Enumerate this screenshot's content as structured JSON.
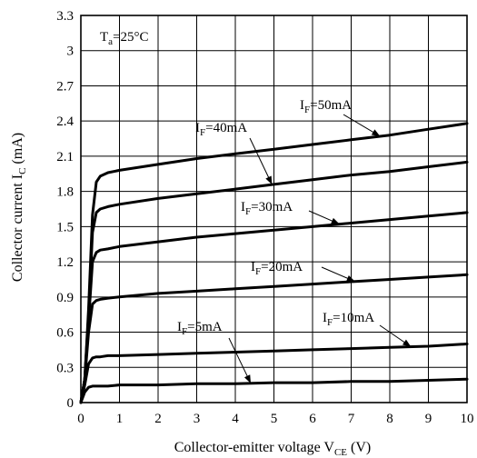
{
  "chart_data": {
    "type": "line",
    "xlabel_main": "Collector-emitter voltage V",
    "xlabel_sub": "CE",
    "xlabel_unit": " (V)",
    "ylabel_main": "Collector current I",
    "ylabel_sub": "C",
    "ylabel_unit": " (mA)",
    "condition_main": "T",
    "condition_sub": "a",
    "condition_rest": "=25°C",
    "xlim": [
      0,
      10
    ],
    "ylim": [
      0,
      3.3
    ],
    "xticks": [
      "0",
      "1",
      "2",
      "3",
      "4",
      "5",
      "6",
      "7",
      "8",
      "9",
      "10"
    ],
    "yticks": [
      "0",
      "0.3",
      "0.6",
      "0.9",
      "1.2",
      "1.5",
      "1.8",
      "2.1",
      "2.4",
      "2.7",
      "3",
      "3.3"
    ],
    "grid": true,
    "series": [
      {
        "name": "IF=50mA",
        "label_main": "I",
        "label_sub": "F",
        "label_rest": "=50mA",
        "x": [
          0,
          0.1,
          0.2,
          0.3,
          0.4,
          0.5,
          0.7,
          1,
          2,
          3,
          4,
          5,
          6,
          7,
          8,
          9,
          10
        ],
        "y": [
          0,
          0.2,
          0.8,
          1.6,
          1.88,
          1.93,
          1.96,
          1.98,
          2.03,
          2.08,
          2.12,
          2.16,
          2.2,
          2.24,
          2.28,
          2.33,
          2.38
        ]
      },
      {
        "name": "IF=40mA",
        "label_main": "I",
        "label_sub": "F",
        "label_rest": "=40mA",
        "x": [
          0,
          0.1,
          0.2,
          0.3,
          0.4,
          0.5,
          0.7,
          1,
          2,
          3,
          4,
          5,
          6,
          7,
          8,
          9,
          10
        ],
        "y": [
          0,
          0.2,
          0.75,
          1.45,
          1.62,
          1.65,
          1.67,
          1.69,
          1.74,
          1.78,
          1.82,
          1.86,
          1.9,
          1.94,
          1.97,
          2.01,
          2.05
        ]
      },
      {
        "name": "IF=30mA",
        "label_main": "I",
        "label_sub": "F",
        "label_rest": "=30mA",
        "x": [
          0,
          0.1,
          0.2,
          0.3,
          0.4,
          0.5,
          0.7,
          1,
          2,
          3,
          4,
          5,
          6,
          7,
          8,
          9,
          10
        ],
        "y": [
          0,
          0.2,
          0.7,
          1.2,
          1.28,
          1.3,
          1.31,
          1.33,
          1.37,
          1.41,
          1.44,
          1.47,
          1.5,
          1.53,
          1.56,
          1.59,
          1.62
        ]
      },
      {
        "name": "IF=20mA",
        "label_main": "I",
        "label_sub": "F",
        "label_rest": "=20mA",
        "x": [
          0,
          0.1,
          0.2,
          0.3,
          0.4,
          0.5,
          0.7,
          1,
          2,
          3,
          4,
          5,
          6,
          7,
          8,
          9,
          10
        ],
        "y": [
          0,
          0.2,
          0.6,
          0.84,
          0.87,
          0.88,
          0.89,
          0.9,
          0.93,
          0.95,
          0.97,
          0.99,
          1.01,
          1.03,
          1.05,
          1.07,
          1.09
        ]
      },
      {
        "name": "IF=10mA",
        "label_main": "I",
        "label_sub": "F",
        "label_rest": "=10mA",
        "x": [
          0,
          0.1,
          0.2,
          0.3,
          0.4,
          0.5,
          0.7,
          1,
          2,
          3,
          4,
          5,
          6,
          7,
          8,
          9,
          10
        ],
        "y": [
          0,
          0.15,
          0.33,
          0.38,
          0.39,
          0.39,
          0.4,
          0.4,
          0.41,
          0.42,
          0.43,
          0.44,
          0.45,
          0.46,
          0.47,
          0.48,
          0.5
        ]
      },
      {
        "name": "IF=5mA",
        "label_main": "I",
        "label_sub": "F",
        "label_rest": "=5mA",
        "x": [
          0,
          0.1,
          0.2,
          0.3,
          0.4,
          0.5,
          0.7,
          1,
          2,
          3,
          4,
          5,
          6,
          7,
          8,
          9,
          10
        ],
        "y": [
          0,
          0.09,
          0.13,
          0.14,
          0.14,
          0.14,
          0.14,
          0.15,
          0.15,
          0.16,
          0.16,
          0.17,
          0.17,
          0.18,
          0.18,
          0.19,
          0.2
        ]
      }
    ]
  }
}
